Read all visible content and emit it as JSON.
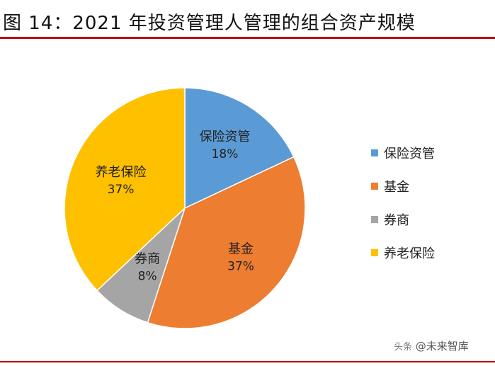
{
  "header": {
    "title": "图 14：2021 年投资管理人管理的组合资产规模"
  },
  "chart_data": {
    "type": "pie",
    "title": "",
    "slices": [
      {
        "label": "保险资管",
        "value": 18,
        "value_label": "18%",
        "color": "#5b9bd5"
      },
      {
        "label": "基金",
        "value": 37,
        "value_label": "37%",
        "color": "#ed7d31"
      },
      {
        "label": "券商",
        "value": 8,
        "value_label": "8%",
        "color": "#a5a5a5"
      },
      {
        "label": "养老保险",
        "value": 37,
        "value_label": "37%",
        "color": "#ffc000"
      }
    ],
    "legend": {
      "placement": "right"
    }
  },
  "watermark": {
    "prefix": "头条",
    "text": "@未来智库"
  }
}
